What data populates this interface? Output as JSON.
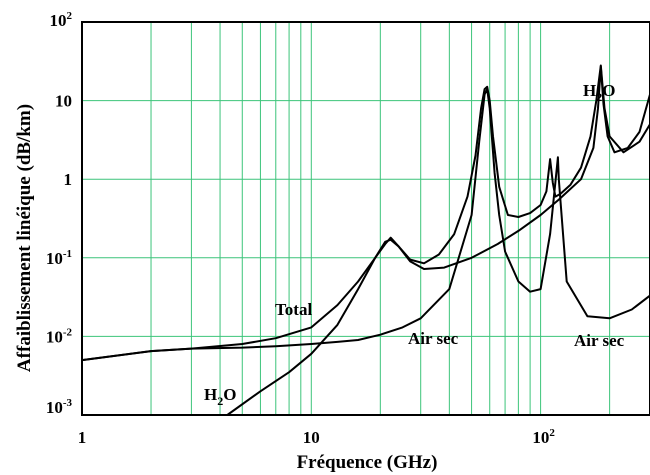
{
  "chart_data": {
    "type": "line",
    "title": "",
    "xlabel": "Fréquence (GHz)",
    "ylabel": "Affaiblissement linéique (dB/km)",
    "x_scale": "log",
    "y_scale": "log",
    "xlim": [
      1,
      300
    ],
    "ylim": [
      0.001,
      100
    ],
    "grid": true,
    "grid_color": "#3cc47a",
    "x_ticks": [
      {
        "value": 1,
        "base": "1",
        "exp": ""
      },
      {
        "value": 10,
        "base": "10",
        "exp": ""
      },
      {
        "value": 100,
        "base": "10",
        "exp": "2"
      }
    ],
    "y_ticks": [
      {
        "value": 0.001,
        "base": "10",
        "exp": "-3"
      },
      {
        "value": 0.01,
        "base": "10",
        "exp": "-2"
      },
      {
        "value": 0.1,
        "base": "10",
        "exp": "-1"
      },
      {
        "value": 1,
        "base": "1",
        "exp": ""
      },
      {
        "value": 10,
        "base": "10",
        "exp": ""
      },
      {
        "value": 100,
        "base": "10",
        "exp": "2"
      }
    ],
    "annotations": [
      {
        "text": "Total",
        "sub": "",
        "rest": ""
      },
      {
        "text": "Air sec",
        "sub": "",
        "rest": ""
      },
      {
        "text": "Air sec",
        "sub": "",
        "rest": ""
      },
      {
        "text": "H",
        "sub": "2",
        "rest": "O"
      },
      {
        "text": "H",
        "sub": "2",
        "rest": "O"
      }
    ],
    "series": [
      {
        "name": "Total",
        "x": [
          1,
          2,
          3,
          5,
          7,
          10,
          13,
          16,
          19,
          21,
          22.2,
          24,
          27,
          31,
          36,
          42,
          48,
          52,
          55,
          57,
          58.5,
          60,
          62,
          66,
          72,
          80,
          90,
          100,
          106,
          110,
          113,
          116,
          122,
          135,
          150,
          165,
          175,
          183,
          190,
          200,
          230,
          270,
          300
        ],
        "y": [
          0.005,
          0.0065,
          0.007,
          0.008,
          0.0095,
          0.013,
          0.025,
          0.05,
          0.1,
          0.15,
          0.18,
          0.14,
          0.095,
          0.085,
          0.11,
          0.2,
          0.6,
          2.0,
          8.0,
          14.0,
          15.0,
          10.0,
          3.5,
          0.8,
          0.35,
          0.33,
          0.37,
          0.47,
          0.7,
          1.8,
          0.9,
          0.6,
          0.65,
          0.85,
          1.4,
          3.5,
          10.0,
          28.0,
          8.0,
          3.5,
          2.2,
          3.0,
          5.0
        ]
      },
      {
        "name": "Air sec",
        "x": [
          1,
          2,
          3,
          5,
          7,
          10,
          13,
          16,
          20,
          25,
          30,
          40,
          50,
          54,
          57,
          58.5,
          60,
          63,
          66,
          70,
          80,
          90,
          100,
          110,
          118,
          119,
          120,
          130,
          160,
          200,
          250,
          300
        ],
        "y": [
          0.005,
          0.0065,
          0.007,
          0.0072,
          0.0075,
          0.008,
          0.0085,
          0.009,
          0.0105,
          0.013,
          0.017,
          0.04,
          0.35,
          3.0,
          12.0,
          14.0,
          8.0,
          1.2,
          0.35,
          0.12,
          0.05,
          0.037,
          0.04,
          0.2,
          1.5,
          1.9,
          1.0,
          0.05,
          0.018,
          0.017,
          0.022,
          0.033
        ]
      },
      {
        "name": "H2O",
        "x": [
          4.3,
          6,
          8,
          10,
          13,
          16,
          19,
          21,
          22.2,
          24,
          27,
          31,
          38,
          50,
          65,
          80,
          100,
          120,
          150,
          170,
          178,
          183,
          188,
          196,
          210,
          240,
          270,
          300
        ],
        "y": [
          0.001,
          0.002,
          0.0035,
          0.006,
          0.014,
          0.04,
          0.1,
          0.16,
          0.17,
          0.14,
          0.09,
          0.072,
          0.075,
          0.1,
          0.15,
          0.22,
          0.35,
          0.55,
          1.0,
          2.5,
          8.0,
          27.0,
          9.0,
          3.5,
          2.2,
          2.5,
          4.0,
          12.0
        ]
      }
    ]
  }
}
